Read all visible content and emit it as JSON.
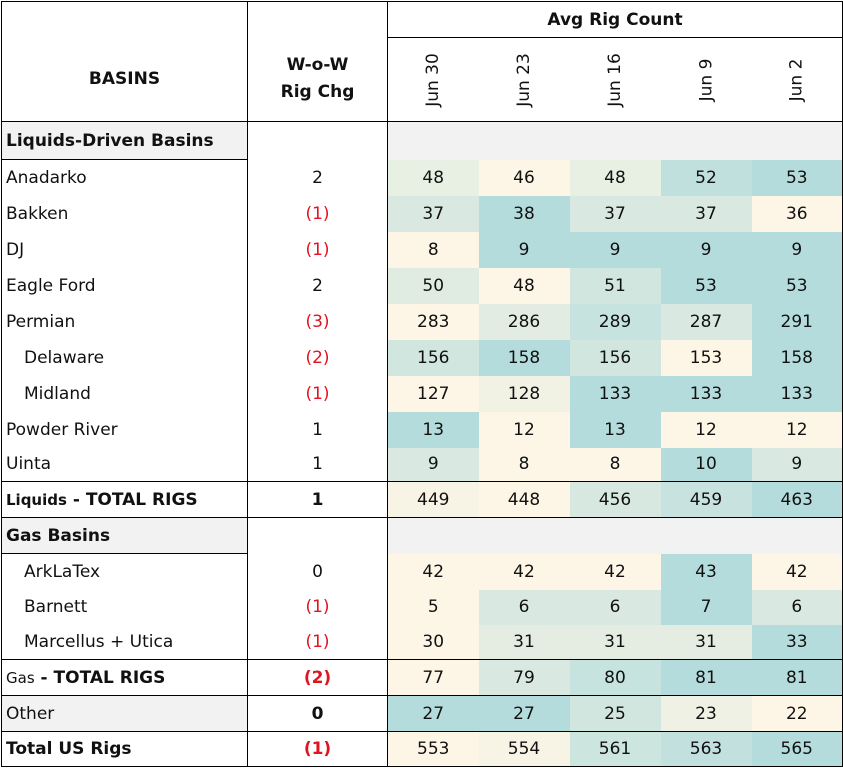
{
  "chart_data": {
    "type": "table",
    "title": "Avg Rig Count",
    "basins_header": "BASINS",
    "wow_header": "W-o-W Rig Chg",
    "columns": [
      "Jun 30",
      "Jun 23",
      "Jun 16",
      "Jun 9",
      "Jun 2"
    ],
    "sections": [
      {
        "title": "Liquids-Driven Basins",
        "rows": [
          {
            "name": "Anadarko",
            "indent": false,
            "wow": "2",
            "neg": false,
            "values": [
              48,
              46,
              48,
              52,
              53
            ]
          },
          {
            "name": "Bakken",
            "indent": false,
            "wow": "(1)",
            "neg": true,
            "values": [
              37,
              38,
              37,
              37,
              36
            ]
          },
          {
            "name": "DJ",
            "indent": false,
            "wow": "(1)",
            "neg": true,
            "values": [
              8,
              9,
              9,
              9,
              9
            ]
          },
          {
            "name": "Eagle Ford",
            "indent": false,
            "wow": "2",
            "neg": false,
            "values": [
              50,
              48,
              51,
              53,
              53
            ]
          },
          {
            "name": "Permian",
            "indent": false,
            "wow": "(3)",
            "neg": true,
            "values": [
              283,
              286,
              289,
              287,
              291
            ]
          },
          {
            "name": "Delaware",
            "indent": true,
            "wow": "(2)",
            "neg": true,
            "values": [
              156,
              158,
              156,
              153,
              158
            ]
          },
          {
            "name": "Midland",
            "indent": true,
            "wow": "(1)",
            "neg": true,
            "values": [
              127,
              128,
              133,
              133,
              133
            ]
          },
          {
            "name": "Powder River",
            "indent": false,
            "wow": "1",
            "neg": false,
            "values": [
              13,
              12,
              13,
              12,
              12
            ]
          },
          {
            "name": "Uinta",
            "indent": false,
            "wow": "1",
            "neg": false,
            "values": [
              9,
              8,
              8,
              10,
              9
            ]
          }
        ],
        "total": {
          "prefix": "Liquids",
          "label": " - TOTAL RIGS",
          "wow": "1",
          "neg": false,
          "values": [
            449,
            448,
            456,
            459,
            463
          ]
        }
      },
      {
        "title": "Gas Basins",
        "rows": [
          {
            "name": "ArkLaTex",
            "indent": true,
            "wow": "0",
            "neg": false,
            "values": [
              42,
              42,
              42,
              43,
              42
            ]
          },
          {
            "name": "Barnett",
            "indent": true,
            "wow": "(1)",
            "neg": true,
            "values": [
              5,
              6,
              6,
              7,
              6
            ]
          },
          {
            "name": "Marcellus + Utica",
            "indent": true,
            "wow": "(1)",
            "neg": true,
            "values": [
              30,
              31,
              31,
              31,
              33
            ]
          }
        ],
        "total": {
          "prefix": "Gas",
          "label": " - TOTAL RIGS",
          "wow": "(2)",
          "neg": true,
          "values": [
            77,
            79,
            80,
            81,
            81
          ]
        }
      }
    ],
    "other": {
      "name": "Other",
      "wow": "0",
      "neg": false,
      "values": [
        27,
        27,
        25,
        23,
        22
      ]
    },
    "grand_total": {
      "name": "Total US Rigs",
      "wow": "(1)",
      "neg": true,
      "values": [
        553,
        554,
        561,
        563,
        565
      ]
    },
    "colors": {
      "low": "#fdf6e6",
      "high": "#b5dcdc",
      "negative": "#e0141e",
      "section_bg": "#f2f2f2"
    }
  }
}
